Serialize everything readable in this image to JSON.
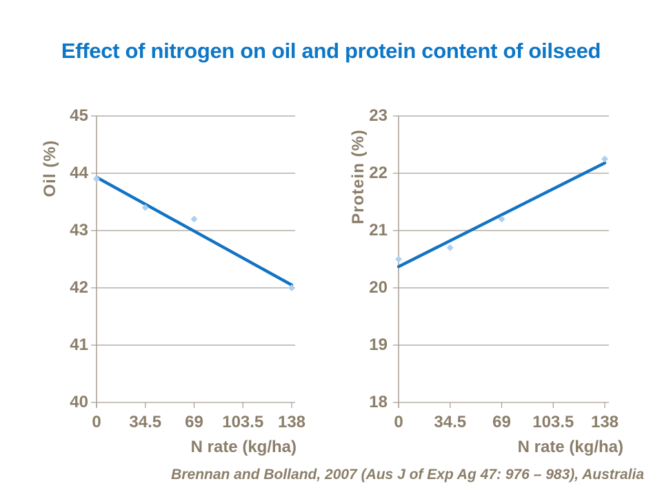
{
  "slide": {
    "title": "Effect of nitrogen on oil and protein content of oilseed",
    "citation": "Brennan and Bolland, 2007 (Aus J of Exp Ag 47: 976 – 983), Australia"
  },
  "colors": {
    "title_blue": "#0d76c6",
    "trend_line_blue": "#1273c4",
    "marker_light_blue": "#aed0ef",
    "axis_text_brown": "#8b7e6a",
    "gridline_gray": "#a89f93",
    "background": "#ffffff"
  },
  "chart_data": [
    {
      "type": "scatter",
      "name": "oil-vs-nitrogen",
      "title": "",
      "xlabel": "N rate (kg/ha)",
      "ylabel": "Oil (%)",
      "x": [
        0,
        34.5,
        69,
        138
      ],
      "y": [
        43.9,
        43.4,
        43.2,
        42.0
      ],
      "trendline": {
        "x": [
          0,
          138
        ],
        "y": [
          43.93,
          42.05
        ]
      },
      "xlim": [
        0,
        138
      ],
      "ylim": [
        40,
        45
      ],
      "xticks": [
        0,
        34.5,
        69,
        103.5,
        138
      ],
      "xtick_labels": [
        "0",
        "34.5",
        "69",
        "103.5",
        "138"
      ],
      "yticks": [
        45,
        44,
        43,
        42,
        41,
        40
      ],
      "ytick_labels": [
        "45",
        "44",
        "43",
        "42",
        "41",
        "40"
      ],
      "grid": true,
      "legend": false,
      "marker": "diamond"
    },
    {
      "type": "scatter",
      "name": "protein-vs-nitrogen",
      "title": "",
      "xlabel": "N rate (kg/ha)",
      "ylabel": "Protein  (%)",
      "x": [
        0,
        34.5,
        69,
        138
      ],
      "y": [
        20.5,
        20.7,
        21.2,
        22.25
      ],
      "trendline": {
        "x": [
          0,
          138
        ],
        "y": [
          20.37,
          22.18
        ]
      },
      "xlim": [
        0,
        138
      ],
      "ylim": [
        18,
        23
      ],
      "xticks": [
        0,
        34.5,
        69,
        103.5,
        138
      ],
      "xtick_labels": [
        "0",
        "34.5",
        "69",
        "103.5",
        "138"
      ],
      "yticks": [
        23,
        22,
        21,
        20,
        19,
        18
      ],
      "ytick_labels": [
        "23",
        "22",
        "21",
        "20",
        "19",
        "18"
      ],
      "grid": true,
      "legend": false,
      "marker": "diamond"
    }
  ]
}
